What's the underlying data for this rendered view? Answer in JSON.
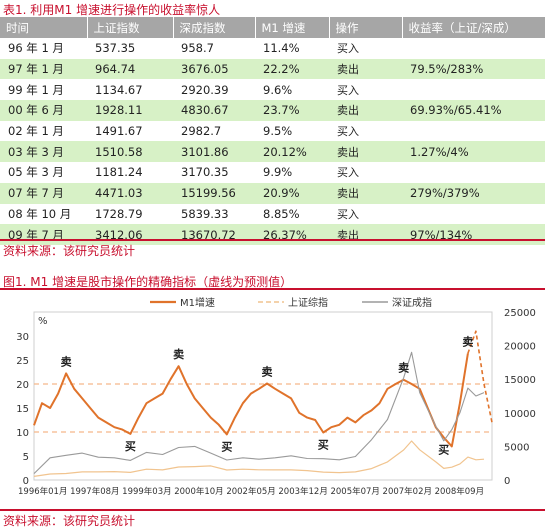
{
  "table": {
    "title": "表1. 利用M1 增速进行操作的收益率惊人",
    "headers": [
      "时间",
      "上证指数",
      "深成指数",
      "M1 增速",
      "操作",
      "收益率（上证/深成）"
    ],
    "rows": [
      {
        "time": "96 年 1 月",
        "sh": "537.35",
        "sz": "958.7",
        "m1": "11.4%",
        "op": "买入",
        "ret": ""
      },
      {
        "time": "97 年 1 月",
        "sh": "964.74",
        "sz": "3676.05",
        "m1": "22.2%",
        "op": "卖出",
        "ret": "79.5%/283%"
      },
      {
        "time": "99 年 1 月",
        "sh": "1134.67",
        "sz": "2920.39",
        "m1": "9.6%",
        "op": "买入",
        "ret": ""
      },
      {
        "time": "00 年 6 月",
        "sh": "1928.11",
        "sz": "4830.67",
        "m1": "23.7%",
        "op": "卖出",
        "ret": "69.93%/65.41%"
      },
      {
        "time": "02 年 1 月",
        "sh": "1491.67",
        "sz": "2982.7",
        "m1": "9.5%",
        "op": "买入",
        "ret": ""
      },
      {
        "time": "03 年 3 月",
        "sh": "1510.58",
        "sz": "3101.86",
        "m1": "20.12%",
        "op": "卖出",
        "ret": "1.27%/4%"
      },
      {
        "time": "05 年 3 月",
        "sh": "1181.24",
        "sz": "3170.35",
        "m1": "9.9%",
        "op": "买入",
        "ret": ""
      },
      {
        "time": "07 年 7 月",
        "sh": "4471.03",
        "sz": "15199.56",
        "m1": "20.9%",
        "op": "卖出",
        "ret": "279%/379%"
      },
      {
        "time": "08 年 10 月",
        "sh": "1728.79",
        "sz": "5839.33",
        "m1": "8.85%",
        "op": "买入",
        "ret": ""
      },
      {
        "time": "09 年 7 月",
        "sh": "3412.06",
        "sz": "13670.72",
        "m1": "26.37%",
        "op": "卖出",
        "ret": "97%/134%"
      }
    ],
    "source": "资料来源：该研究员统计"
  },
  "chart_title": "图1. M1 增速是股市操作的精确指标（虚线为预测值）",
  "chart_source": "资料来源：该研究员统计",
  "colors": {
    "m1": "#e0732b",
    "sh": "#f1c48f",
    "sz": "#9a9a9a",
    "ref": "#f5b88a",
    "accent": "#c8102e",
    "header": "#a6a6a6",
    "stripe": "#d7f1c6"
  },
  "chart_data": {
    "type": "line",
    "y_left_unit": "%",
    "ylim_left": [
      0,
      35
    ],
    "yticks_left": [
      "0",
      "5",
      "10",
      "15",
      "20",
      "25",
      "30"
    ],
    "ylim_right": [
      0,
      25000
    ],
    "yticks_right": [
      "0",
      "5000",
      "10000",
      "15000",
      "20000",
      "25000"
    ],
    "x_labels": [
      "1996年01月",
      "1997年08月",
      "1999年03月",
      "2000年10月",
      "2002年05月",
      "2003年12月",
      "2005年07月",
      "2007年02月",
      "2008年09月"
    ],
    "x_range": [
      1996.0,
      2010.25
    ],
    "reference_lines": [
      10,
      20
    ],
    "legend": [
      "M1增速",
      "上证综指",
      "深证成指"
    ],
    "series": [
      {
        "name": "M1增速",
        "axis": "left",
        "style": "solid",
        "x": [
          1996.0,
          1996.25,
          1996.5,
          1996.75,
          1997.0,
          1997.25,
          1997.5,
          1997.75,
          1998.0,
          1998.25,
          1998.5,
          1998.75,
          1999.0,
          1999.25,
          1999.5,
          1999.75,
          2000.0,
          2000.25,
          2000.5,
          2000.75,
          2001.0,
          2001.25,
          2001.5,
          2001.75,
          2002.0,
          2002.25,
          2002.5,
          2002.75,
          2003.0,
          2003.25,
          2003.5,
          2003.75,
          2004.0,
          2004.25,
          2004.5,
          2004.75,
          2005.0,
          2005.25,
          2005.5,
          2005.75,
          2006.0,
          2006.25,
          2006.5,
          2006.75,
          2007.0,
          2007.25,
          2007.5,
          2007.75,
          2008.0,
          2008.25,
          2008.5,
          2008.75,
          2009.0,
          2009.25,
          2009.5
        ],
        "y": [
          11.4,
          16,
          15,
          18,
          22.2,
          19,
          17,
          15,
          13,
          12,
          11,
          10.5,
          9.6,
          13,
          16,
          17,
          18,
          21,
          23.7,
          20,
          17,
          15,
          13,
          11.5,
          9.5,
          13,
          16,
          18,
          19,
          20.1,
          19,
          18,
          17,
          14,
          13,
          12.5,
          9.9,
          11,
          11.5,
          13,
          12,
          13.5,
          14.5,
          16,
          19,
          20,
          20.9,
          20,
          19,
          15,
          11,
          8.85,
          7,
          16,
          26.37
        ]
      },
      {
        "name": "M1增速",
        "axis": "left",
        "style": "dashed",
        "x": [
          2009.5,
          2009.75,
          2010.0,
          2010.25
        ],
        "y": [
          26.37,
          31,
          20,
          12
        ]
      },
      {
        "name": "上证综指",
        "axis": "right",
        "x": [
          1996.0,
          1996.5,
          1997.0,
          1997.5,
          1998.0,
          1998.5,
          1999.0,
          1999.5,
          2000.0,
          2000.5,
          2001.0,
          2001.5,
          2002.0,
          2002.5,
          2003.0,
          2003.5,
          2004.0,
          2004.5,
          2005.0,
          2005.5,
          2006.0,
          2006.5,
          2007.0,
          2007.5,
          2007.75,
          2008.0,
          2008.5,
          2008.75,
          2009.0,
          2009.25,
          2009.5,
          2009.75,
          2010.0
        ],
        "y": [
          537,
          900,
          965,
          1200,
          1200,
          1250,
          1135,
          1600,
          1500,
          1928,
          2000,
          2100,
          1492,
          1600,
          1511,
          1500,
          1500,
          1400,
          1181,
          1100,
          1200,
          1700,
          2700,
          4471,
          5800,
          4500,
          2700,
          1729,
          1900,
          2400,
          3412,
          3000,
          3100
        ]
      },
      {
        "name": "深证成指",
        "axis": "right",
        "x": [
          1996.0,
          1996.5,
          1997.0,
          1997.5,
          1998.0,
          1998.5,
          1999.0,
          1999.5,
          2000.0,
          2000.5,
          2001.0,
          2001.5,
          2002.0,
          2002.5,
          2003.0,
          2003.5,
          2004.0,
          2004.5,
          2005.0,
          2005.5,
          2006.0,
          2006.5,
          2007.0,
          2007.5,
          2007.75,
          2008.0,
          2008.5,
          2008.75,
          2009.0,
          2009.25,
          2009.5,
          2009.75,
          2010.0
        ],
        "y": [
          959,
          3300,
          3676,
          4000,
          3400,
          3300,
          2920,
          4100,
          3800,
          4831,
          5000,
          4000,
          2983,
          3300,
          3102,
          3300,
          3600,
          3200,
          3170,
          3000,
          3500,
          6000,
          9000,
          15200,
          19000,
          13000,
          8000,
          5839,
          7500,
          10000,
          13671,
          12500,
          13000
        ]
      }
    ],
    "annotations": [
      {
        "text": "卖",
        "x": 1997.0,
        "y": 22.2,
        "pos": "above"
      },
      {
        "text": "买",
        "x": 1999.0,
        "y": 9.6,
        "pos": "below"
      },
      {
        "text": "卖",
        "x": 2000.5,
        "y": 23.7,
        "pos": "above"
      },
      {
        "text": "买",
        "x": 2002.0,
        "y": 9.5,
        "pos": "below"
      },
      {
        "text": "卖",
        "x": 2003.25,
        "y": 20.1,
        "pos": "above"
      },
      {
        "text": "买",
        "x": 2005.0,
        "y": 9.9,
        "pos": "below"
      },
      {
        "text": "卖",
        "x": 2007.5,
        "y": 20.9,
        "pos": "above"
      },
      {
        "text": "买",
        "x": 2008.75,
        "y": 8.85,
        "pos": "below"
      },
      {
        "text": "卖",
        "x": 2009.5,
        "y": 26.37,
        "pos": "above"
      }
    ]
  }
}
